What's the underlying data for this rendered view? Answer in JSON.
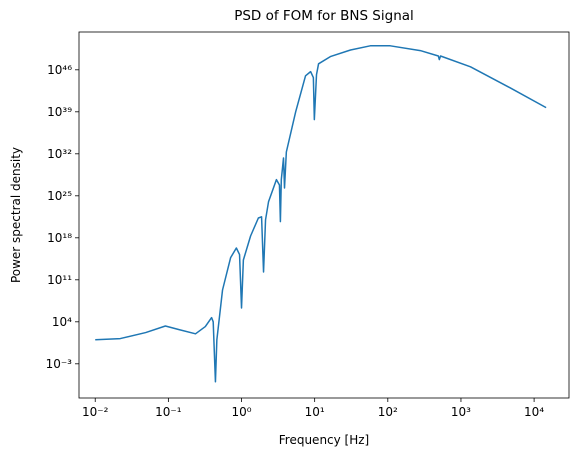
{
  "chart_data": {
    "type": "line",
    "title": "PSD of FOM for BNS Signal",
    "xlabel": "Frequency [Hz]",
    "ylabel": "Power spectral density",
    "xlog": true,
    "ylog": true,
    "xlim": [
      0.006,
      30000
    ],
    "ylim": [
      2e-09,
      2e+52
    ],
    "xticks": [
      {
        "value": 0.01,
        "label": "10⁻²"
      },
      {
        "value": 0.1,
        "label": "10⁻¹"
      },
      {
        "value": 1,
        "label": "10⁰"
      },
      {
        "value": 10,
        "label": "10¹"
      },
      {
        "value": 100,
        "label": "10²"
      },
      {
        "value": 1000,
        "label": "10³"
      },
      {
        "value": 10000,
        "label": "10⁴"
      }
    ],
    "yticks": [
      {
        "value": 0.001,
        "label": "10⁻³"
      },
      {
        "value": 10000.0,
        "label": "10⁴"
      },
      {
        "value": 100000000000.0,
        "label": "10¹¹"
      },
      {
        "value": 1e+18,
        "label": "10¹⁸"
      },
      {
        "value": 1e+25,
        "label": "10²⁵"
      },
      {
        "value": 1e+32,
        "label": "10³²"
      },
      {
        "value": 1e+39,
        "label": "10³⁹"
      },
      {
        "value": 1e+46,
        "label": "10⁴⁶"
      }
    ],
    "x": [
      0.01,
      0.022,
      0.049,
      0.091,
      0.14,
      0.235,
      0.32,
      0.39,
      0.41,
      0.44,
      0.46,
      0.55,
      0.71,
      0.85,
      0.94,
      1.0,
      1.06,
      1.33,
      1.7,
      1.88,
      2.0,
      2.13,
      2.34,
      3.0,
      3.3,
      3.4,
      3.5,
      3.75,
      3.87,
      4.1,
      5.5,
      7.5,
      8.8,
      9.6,
      9.9,
      10.6,
      11.3,
      16.4,
      30.9,
      57.6,
      108,
      278,
      491,
      506,
      526,
      1350,
      4700,
      14600
    ],
    "series": [
      {
        "color": "#1f77b4",
        "values": [
          10,
          16,
          160,
          2000,
          500,
          100,
          1600,
          50000,
          10000,
          1e-06,
          10,
          2000000000.0,
          500000000000000.0,
          2e+16,
          1600000000000000.0,
          2000000.0,
          200000000000000.0,
          2e+18,
          2e+21,
          3.2e+21,
          2000000000000.0,
          1e+21,
          1e+24,
          5e+27,
          6.3e+26,
          5e+20,
          5e+27,
          2e+31,
          2e+26,
          2e+32,
          1e+39,
          1e+45,
          5e+45,
          5e+44,
          5e+37,
          1.6e+45,
          1e+47,
          1.6e+48,
          2e+49,
          1e+50,
          1e+50,
          1.6e+49,
          2e+48,
          5e+47,
          2e+48,
          3.2e+46,
          1e+43,
          5e+39
        ]
      }
    ]
  }
}
